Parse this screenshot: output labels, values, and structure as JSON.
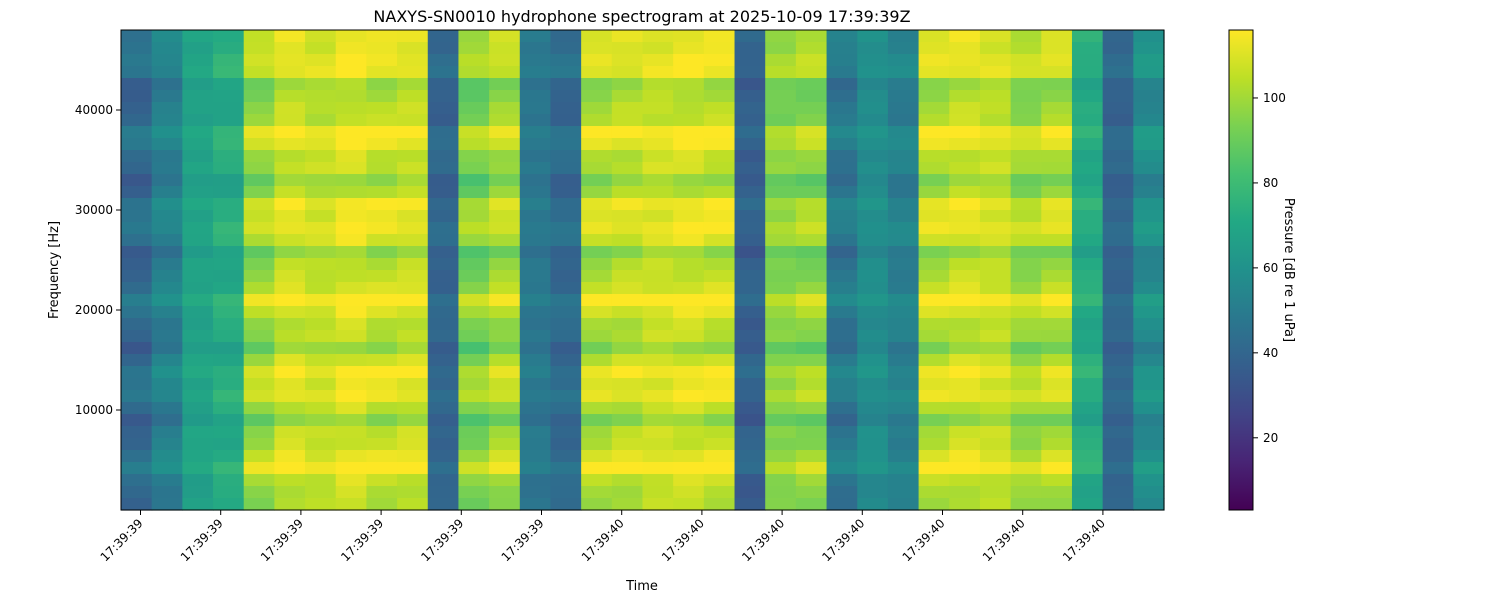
{
  "chart_data": {
    "type": "heatmap",
    "title": "NAXYS-SN0010 hydrophone spectrogram at 2025-10-09 17:39:39Z",
    "xlabel": "Time",
    "ylabel": "Frequency [Hz]",
    "colorbar_label": "Pressure [dB re 1 uPa]",
    "colormap": "viridis",
    "ylim": [
      0,
      48000
    ],
    "clim": [
      3,
      116
    ],
    "x_ticks": [
      "17:39:39",
      "17:39:39",
      "17:39:39",
      "17:39:39",
      "17:39:39",
      "17:39:39",
      "17:39:40",
      "17:39:40",
      "17:39:40",
      "17:39:40",
      "17:39:40",
      "17:39:40",
      "17:39:40"
    ],
    "y_ticks": [
      10000,
      20000,
      30000,
      40000
    ],
    "colorbar_ticks": [
      20,
      40,
      60,
      80,
      100
    ],
    "time_profile_db": [
      42,
      52,
      68,
      72,
      100,
      108,
      106,
      110,
      107,
      108,
      40,
      95,
      102,
      48,
      42,
      104,
      106,
      108,
      109,
      108,
      38,
      96,
      98,
      48,
      58,
      52,
      105,
      108,
      107,
      100,
      104,
      72,
      40,
      58
    ],
    "grid": false,
    "legend": "none"
  }
}
